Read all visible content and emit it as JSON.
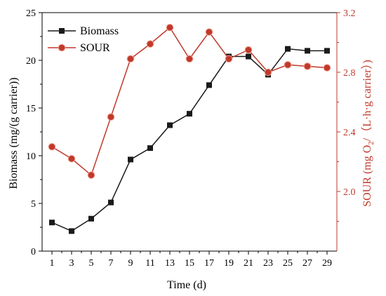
{
  "chart_data": {
    "type": "line",
    "title": "",
    "xlabel": "Time (d)",
    "ylabel_left": "Biomass (mg/(g carrier))",
    "ylabel_right": "SOUR (mg O₂/（L·h·g carrier）)",
    "x": [
      1,
      3,
      5,
      7,
      9,
      11,
      13,
      15,
      17,
      19,
      21,
      23,
      25,
      27,
      29
    ],
    "xlim": [
      0,
      30
    ],
    "ylim_left": [
      0,
      25
    ],
    "ylim_right": [
      1.6,
      3.2
    ],
    "yticks_left": [
      0,
      5,
      10,
      15,
      20,
      25
    ],
    "yticks_right": [
      2.0,
      2.4,
      2.8,
      3.2
    ],
    "legend_position": "top-left",
    "grid": false,
    "series": [
      {
        "name": "Biomass",
        "axis": "left",
        "marker": "square",
        "color": "#1a1a1a",
        "values": [
          3.0,
          2.1,
          3.4,
          5.1,
          9.6,
          10.8,
          13.2,
          14.4,
          17.4,
          20.4,
          20.4,
          18.5,
          21.2,
          21.0,
          21.0
        ]
      },
      {
        "name": "SOUR",
        "axis": "right",
        "marker": "circle",
        "color": "#c0392b",
        "values": [
          2.3,
          2.22,
          2.11,
          2.5,
          2.89,
          2.99,
          3.1,
          2.89,
          3.07,
          2.89,
          2.95,
          2.8,
          2.85,
          2.84,
          2.83
        ]
      }
    ]
  }
}
